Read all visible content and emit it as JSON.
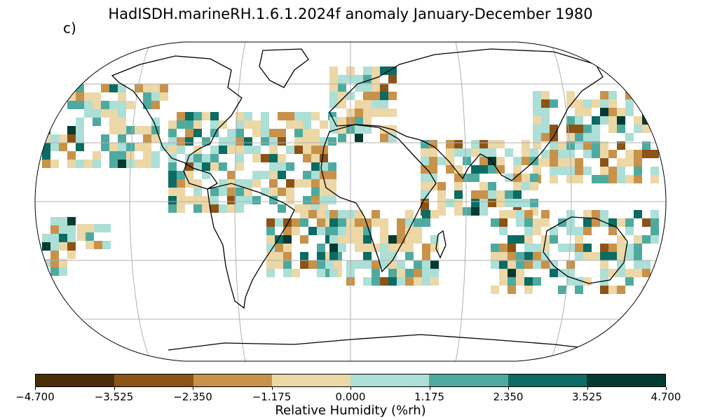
{
  "map": {
    "title": "HadISDH.marineRH.1.6.1.2024f anomaly January-December 1980",
    "panel_label": "c)",
    "projection": "Robinson",
    "gridlines": true
  },
  "colorbar": {
    "label": "Relative Humidity (%rh)",
    "ticks": [
      "−4.700",
      "−3.525",
      "−2.350",
      "−1.175",
      "0.000",
      "1.175",
      "2.350",
      "3.525",
      "4.700"
    ],
    "colors": [
      "#4a2e07",
      "#8c5316",
      "#c8924a",
      "#ecd7a6",
      "#acdfd6",
      "#4eaa9f",
      "#0c6b62",
      "#033b32"
    ]
  }
}
